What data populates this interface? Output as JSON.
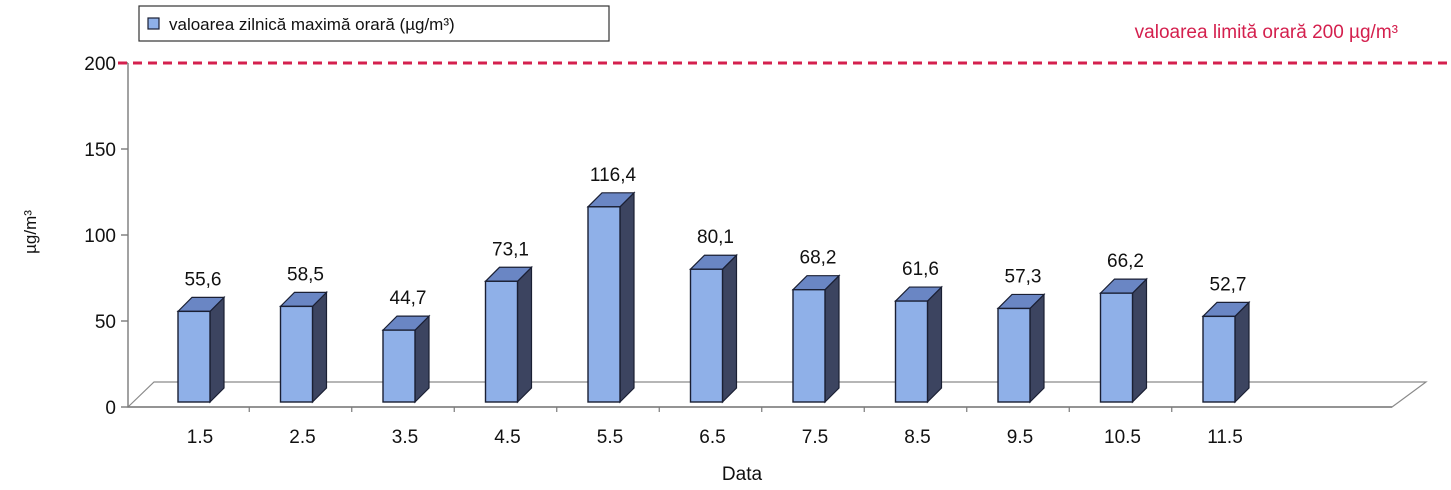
{
  "chart_data": {
    "type": "bar",
    "categories": [
      "1.5",
      "2.5",
      "3.5",
      "4.5",
      "5.5",
      "6.5",
      "7.5",
      "8.5",
      "9.5",
      "10.5",
      "11.5"
    ],
    "series": [
      {
        "name": "valoarea zilnică maximă orară (µg/m³)",
        "values": [
          55.6,
          58.5,
          44.7,
          73.1,
          116.4,
          80.1,
          68.2,
          61.6,
          57.3,
          66.2,
          52.7
        ],
        "value_labels": [
          "55,6",
          "58,5",
          "44,7",
          "73,1",
          "116,4",
          "80,1",
          "68,2",
          "61,6",
          "57,3",
          "66,2",
          "52,7"
        ]
      }
    ],
    "xlabel": "Data",
    "ylabel": "µg/m³",
    "ylim": [
      0,
      200
    ],
    "yticks": [
      0,
      50,
      100,
      150,
      200
    ],
    "threshold": {
      "value": 200,
      "label": "valoarea limită orară 200 µg/m³"
    },
    "legend_position": "top-left",
    "grid": false,
    "colors": {
      "bar_front": "#8fb0e8",
      "bar_side": "#3c4460",
      "bar_top": "#6a86c4",
      "bar_outline": "#1a1f33",
      "threshold": "#d4204e",
      "axis": "#7a7a7a",
      "text": "#111111"
    }
  }
}
